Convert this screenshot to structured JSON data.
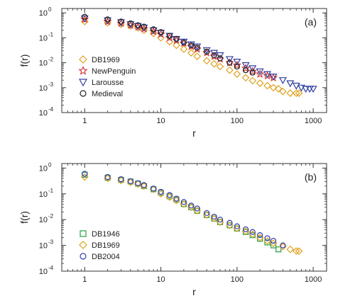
{
  "chart_data": [
    {
      "type": "scatter",
      "panel_label": "(a)",
      "xlabel": "r",
      "ylabel": "f(r)",
      "xscale": "log",
      "yscale": "log",
      "xlim": [
        0.5,
        1500
      ],
      "ylim": [
        0.0001,
        1.5
      ],
      "x_ticks": [
        1,
        10,
        100,
        1000
      ],
      "x_tick_labels": [
        "1",
        "10",
        "100",
        "1000"
      ],
      "y_ticks": [
        0.0001,
        0.001,
        0.01,
        0.1,
        1
      ],
      "y_tick_labels": [
        "10",
        "10",
        "10",
        "10",
        "10"
      ],
      "y_tick_exponents": [
        "-4",
        "-3",
        "-2",
        "-1",
        "0"
      ],
      "legend_position": "left",
      "series": [
        {
          "name": "DB1969",
          "marker": "diamond",
          "color": "#e0a020",
          "x": [
            1,
            2,
            3,
            4,
            5,
            6,
            8,
            10,
            13,
            16,
            20,
            25,
            30,
            40,
            50,
            60,
            80,
            100,
            130,
            160,
            200,
            250,
            300,
            350,
            400,
            500,
            600,
            650
          ],
          "y": [
            0.45,
            0.4,
            0.35,
            0.3,
            0.25,
            0.2,
            0.15,
            0.1,
            0.07,
            0.05,
            0.035,
            0.025,
            0.018,
            0.012,
            0.009,
            0.007,
            0.005,
            0.0035,
            0.0025,
            0.0019,
            0.0015,
            0.0012,
            0.001,
            0.0009,
            0.0007,
            0.0006,
            0.0006,
            0.0006
          ]
        },
        {
          "name": "NewPenguin",
          "marker": "star",
          "color": "#d03030",
          "x": [
            1,
            2,
            3,
            4,
            5,
            6,
            8,
            10,
            13,
            16,
            20,
            25,
            30,
            40,
            50,
            60,
            80,
            100,
            130,
            160,
            200,
            250,
            300
          ],
          "y": [
            0.55,
            0.45,
            0.38,
            0.32,
            0.27,
            0.23,
            0.18,
            0.14,
            0.1,
            0.08,
            0.06,
            0.045,
            0.035,
            0.025,
            0.018,
            0.014,
            0.01,
            0.008,
            0.006,
            0.0045,
            0.0035,
            0.003,
            0.0025
          ]
        },
        {
          "name": "Larousse",
          "marker": "triangle-down",
          "color": "#3040a0",
          "x": [
            1,
            2,
            3,
            4,
            5,
            6,
            8,
            10,
            13,
            16,
            20,
            25,
            30,
            40,
            50,
            60,
            80,
            100,
            130,
            160,
            200,
            250,
            300,
            400,
            500,
            600,
            700,
            800,
            900,
            1000
          ],
          "y": [
            0.6,
            0.5,
            0.42,
            0.35,
            0.3,
            0.26,
            0.2,
            0.16,
            0.12,
            0.09,
            0.07,
            0.055,
            0.045,
            0.032,
            0.025,
            0.02,
            0.014,
            0.011,
            0.008,
            0.006,
            0.0045,
            0.0035,
            0.0028,
            0.002,
            0.0015,
            0.0012,
            0.001,
            0.0009,
            0.0009,
            0.0009
          ]
        },
        {
          "name": "Medieval",
          "marker": "circle",
          "color": "#202020",
          "x": [
            1,
            2,
            3,
            4,
            5,
            6,
            8,
            10,
            13,
            16,
            20,
            25,
            30,
            40,
            50,
            60,
            80,
            100,
            130,
            160
          ],
          "y": [
            0.7,
            0.55,
            0.45,
            0.38,
            0.32,
            0.28,
            0.22,
            0.17,
            0.12,
            0.09,
            0.065,
            0.05,
            0.04,
            0.028,
            0.02,
            0.015,
            0.01,
            0.007,
            0.005,
            0.004
          ]
        }
      ]
    },
    {
      "type": "scatter",
      "panel_label": "(b)",
      "xlabel": "r",
      "ylabel": "f(r)",
      "xscale": "log",
      "yscale": "log",
      "xlim": [
        0.5,
        1500
      ],
      "ylim": [
        0.0001,
        1.5
      ],
      "x_ticks": [
        1,
        10,
        100,
        1000
      ],
      "x_tick_labels": [
        "1",
        "10",
        "100",
        "1000"
      ],
      "y_ticks": [
        0.0001,
        0.001,
        0.01,
        0.1,
        1
      ],
      "y_tick_labels": [
        "10",
        "10",
        "10",
        "10",
        "10"
      ],
      "y_tick_exponents": [
        "-4",
        "-3",
        "-2",
        "-1",
        "0"
      ],
      "legend_position": "left",
      "series": [
        {
          "name": "DB1946",
          "marker": "square",
          "color": "#20a040",
          "x": [
            1,
            2,
            3,
            4,
            5,
            6,
            8,
            10,
            13,
            16,
            20,
            25,
            30,
            40,
            50,
            60,
            80,
            100,
            130,
            160,
            200,
            250,
            300,
            350
          ],
          "y": [
            0.55,
            0.42,
            0.35,
            0.3,
            0.25,
            0.2,
            0.15,
            0.11,
            0.08,
            0.06,
            0.04,
            0.03,
            0.022,
            0.015,
            0.011,
            0.008,
            0.006,
            0.0045,
            0.0033,
            0.0025,
            0.0018,
            0.0013,
            0.001,
            0.0007
          ]
        },
        {
          "name": "DB1969",
          "marker": "diamond",
          "color": "#e0a020",
          "x": [
            1,
            2,
            3,
            4,
            5,
            6,
            8,
            10,
            13,
            16,
            20,
            25,
            30,
            40,
            50,
            60,
            80,
            100,
            130,
            160,
            200,
            250,
            300,
            400,
            500,
            600,
            650
          ],
          "y": [
            0.45,
            0.4,
            0.33,
            0.28,
            0.24,
            0.2,
            0.15,
            0.1,
            0.075,
            0.055,
            0.04,
            0.03,
            0.022,
            0.015,
            0.011,
            0.008,
            0.006,
            0.0045,
            0.0035,
            0.0027,
            0.002,
            0.0015,
            0.0012,
            0.0009,
            0.0007,
            0.0006,
            0.0006
          ]
        },
        {
          "name": "DB2004",
          "marker": "circle",
          "color": "#3040b0",
          "x": [
            1,
            2,
            3,
            4,
            5,
            6,
            8,
            10,
            13,
            16,
            20,
            25,
            30,
            40,
            50,
            60,
            80,
            100,
            130,
            160,
            200,
            250,
            300,
            400
          ],
          "y": [
            0.6,
            0.45,
            0.37,
            0.31,
            0.26,
            0.22,
            0.16,
            0.12,
            0.09,
            0.065,
            0.048,
            0.035,
            0.027,
            0.018,
            0.013,
            0.01,
            0.0075,
            0.0055,
            0.0042,
            0.0033,
            0.0025,
            0.0019,
            0.0015,
            0.001
          ]
        }
      ]
    }
  ]
}
